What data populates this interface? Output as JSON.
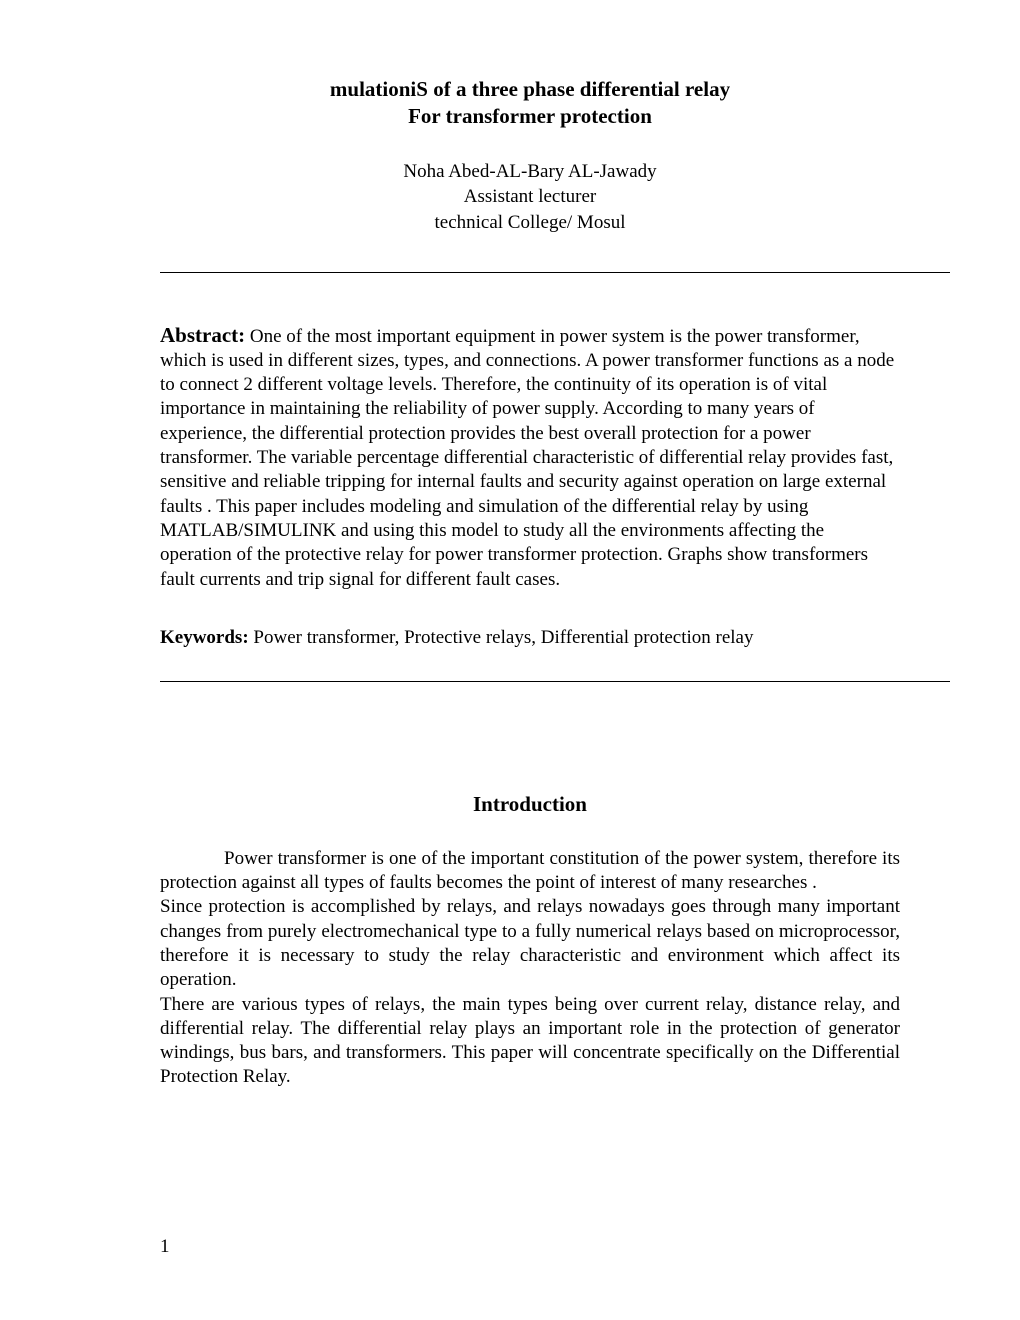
{
  "title": {
    "line1": "mulationiS of  a three phase differential relay",
    "line2": "For transformer protection"
  },
  "author": {
    "name": "Noha Abed-AL-Bary AL-Jawady",
    "role": "Assistant lecturer",
    "affiliation": "technical College/ Mosul"
  },
  "abstract": {
    "label": "Abstract:",
    "text": " One of the most important equipment in power system is the power transformer, which is used in different sizes, types, and connections. A power transformer functions as a node to connect 2 different voltage levels. Therefore, the continuity of its operation is of vital importance in maintaining the reliability of power supply. According to many years of experience, the differential protection provides the best overall protection for a power transformer. The variable percentage differential characteristic of differential relay provides fast, sensitive and reliable tripping for internal faults and security against operation on large external faults . This paper includes modeling and simulation of the differential  relay by using MATLAB/SIMULINK and using this model to study all the environments affecting the operation of the protective relay for power transformer protection. Graphs show transformers fault currents and trip signal for different fault cases."
  },
  "keywords": {
    "label": "Keywords:",
    "text": " Power transformer, Protective relays, Differential protection relay"
  },
  "introduction": {
    "heading": "Introduction",
    "para1": "Power transformer is  one of the important constitution of the power system, therefore its protection against all types of faults becomes the point of interest of many researches .",
    "para2": "Since protection is accomplished by relays, and relays nowadays goes through many important changes from purely electromechanical type to a fully numerical relays based on microprocessor, therefore it is necessary to study the relay characteristic and environment which affect its operation.",
    "para3": "There are various types of relays, the main types being over current relay, distance relay, and differential relay. The differential relay plays an important role in the protection of generator windings, bus bars, and transformers. This paper will concentrate specifically on the Differential Protection Relay."
  },
  "pageNumber": "1",
  "colors": {
    "background": "#ffffff",
    "text": "#000000",
    "rule": "#000000"
  },
  "typography": {
    "fontFamily": "Times New Roman",
    "titleFontSize": 21,
    "bodyFontSize": 19,
    "abstractLabelFontSize": 21
  }
}
